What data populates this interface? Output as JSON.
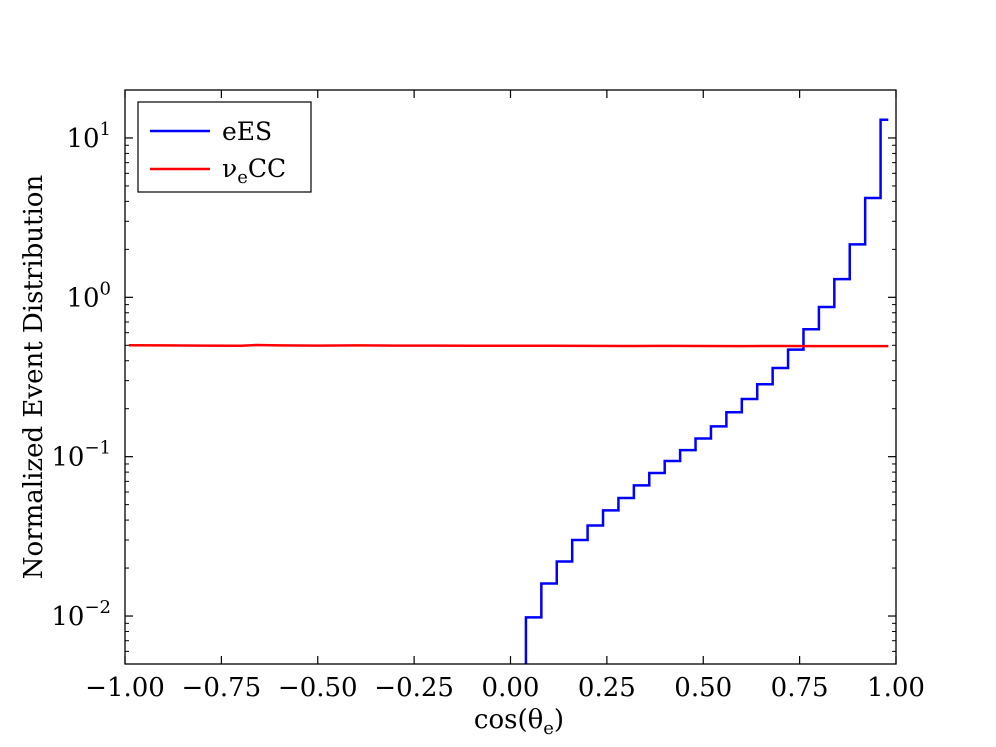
{
  "chart_data": {
    "type": "line",
    "xlabel_base": "cos(θ",
    "xlabel_sub": "e",
    "xlabel_end": ")",
    "ylabel": "Normalized Event Distribution",
    "xlim": [
      -1.0,
      1.0
    ],
    "ylim": [
      0.005,
      20
    ],
    "yscale": "log",
    "grid": false,
    "legend_position": "top-left",
    "x_ticks": [
      -1.0,
      -0.75,
      -0.5,
      -0.25,
      0.0,
      0.25,
      0.5,
      0.75,
      1.0
    ],
    "x_tick_labels": [
      "−1.00",
      "−0.75",
      "−0.50",
      "−0.25",
      "0.00",
      "0.25",
      "0.50",
      "0.75",
      "1.00"
    ],
    "y_ticks": [
      {
        "value": 10,
        "base": "10",
        "exp": "1"
      },
      {
        "value": 1,
        "base": "10",
        "exp": "0"
      },
      {
        "value": 0.1,
        "base": "10",
        "exp": "−1"
      },
      {
        "value": 0.01,
        "base": "10",
        "exp": "−2"
      }
    ],
    "series": [
      {
        "name": "eES",
        "color": "#0000ff",
        "style": "step",
        "bin_edges": [
          0.0,
          0.04,
          0.08,
          0.12,
          0.16,
          0.2,
          0.24,
          0.28,
          0.32,
          0.36,
          0.4,
          0.44,
          0.48,
          0.52,
          0.56,
          0.6,
          0.64,
          0.68,
          0.72,
          0.76,
          0.8,
          0.84,
          0.88,
          0.92,
          0.96,
          0.98
        ],
        "values": [
          0.0001,
          0.0098,
          0.016,
          0.022,
          0.03,
          0.037,
          0.046,
          0.055,
          0.066,
          0.079,
          0.094,
          0.11,
          0.13,
          0.155,
          0.19,
          0.23,
          0.285,
          0.36,
          0.47,
          0.63,
          0.87,
          1.3,
          2.15,
          4.2,
          13.0
        ]
      },
      {
        "name_base": "ν",
        "name_sub": "e",
        "name_end": "CC",
        "color": "#ff0000",
        "style": "line",
        "x": [
          -0.99,
          -0.9,
          -0.8,
          -0.7,
          -0.66,
          -0.6,
          -0.5,
          -0.4,
          -0.3,
          -0.2,
          -0.1,
          0.0,
          0.1,
          0.2,
          0.3,
          0.4,
          0.5,
          0.6,
          0.7,
          0.8,
          0.9,
          0.98
        ],
        "values": [
          0.5,
          0.499,
          0.498,
          0.497,
          0.502,
          0.499,
          0.498,
          0.499,
          0.498,
          0.498,
          0.497,
          0.497,
          0.497,
          0.496,
          0.495,
          0.496,
          0.495,
          0.494,
          0.495,
          0.494,
          0.494,
          0.494
        ]
      }
    ]
  }
}
